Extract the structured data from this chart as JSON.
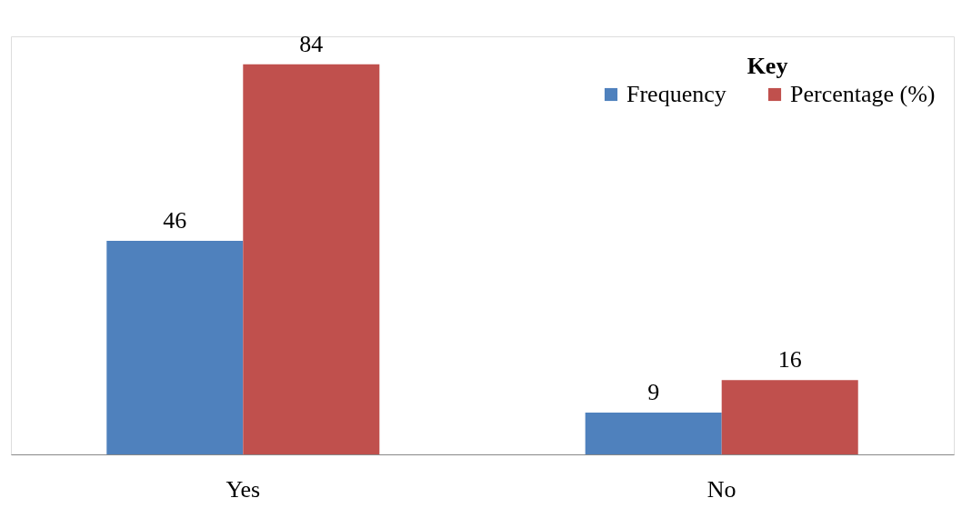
{
  "chart_data": {
    "type": "bar",
    "categories": [
      "Yes",
      "No"
    ],
    "series": [
      {
        "name": "Frequency",
        "color": "#4f81bd",
        "values": [
          46,
          9
        ]
      },
      {
        "name": "Percentage (%)",
        "color": "#c0504d",
        "values": [
          84,
          16
        ]
      }
    ],
    "legend_title": "Key",
    "legend": "top right",
    "data_labels": true,
    "grid": false
  }
}
